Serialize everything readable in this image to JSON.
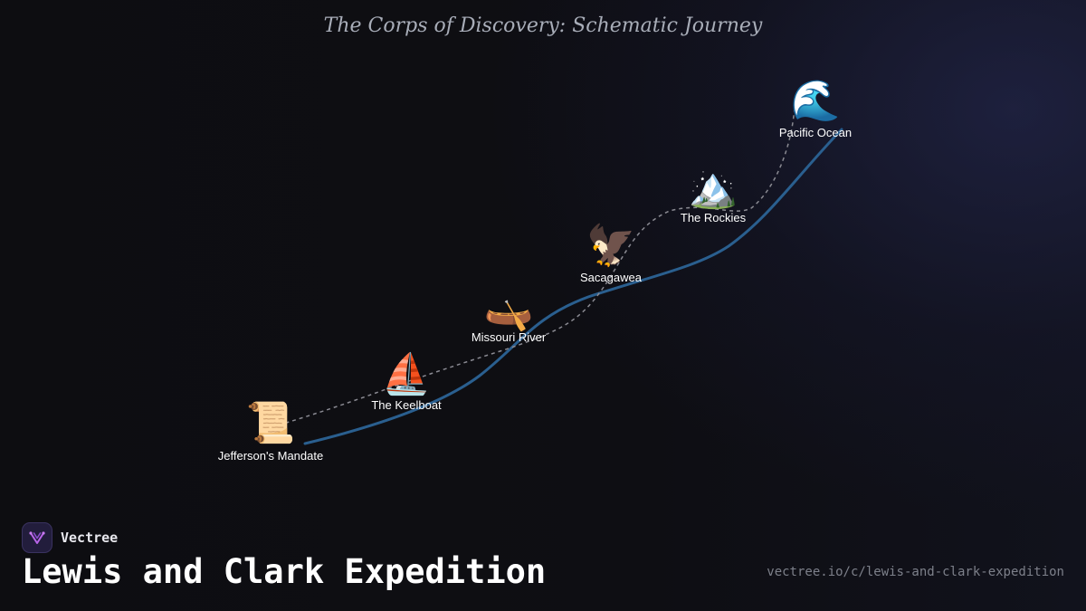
{
  "diagram": {
    "title": "The Corps of Discovery: Schematic Journey",
    "colors": {
      "route": "#2a5f8f",
      "dotted_path": "#8a8a92",
      "label": "#ffffff"
    },
    "nodes": [
      {
        "id": "jefferson",
        "label": "Jefferson's Mandate",
        "icon": "📜",
        "icon_name": "scroll-icon"
      },
      {
        "id": "keelboat",
        "label": "The Keelboat",
        "icon": "⛵",
        "icon_name": "sailboat-icon"
      },
      {
        "id": "missouri",
        "label": "Missouri River",
        "icon": "🛶",
        "icon_name": "canoe-icon"
      },
      {
        "id": "sacagawea",
        "label": "Sacagawea",
        "icon": "🦅",
        "icon_name": "eagle-icon"
      },
      {
        "id": "rockies",
        "label": "The Rockies",
        "icon": "🏔️",
        "icon_name": "mountain-icon"
      },
      {
        "id": "pacific",
        "label": "Pacific Ocean",
        "icon": "🌊",
        "icon_name": "wave-icon"
      }
    ]
  },
  "footer": {
    "brand_name": "Vectree",
    "brand_icon": "vectree-logo-icon",
    "title": "Lewis and Clark Expedition",
    "url": "vectree.io/c/lewis-and-clark-expedition"
  }
}
